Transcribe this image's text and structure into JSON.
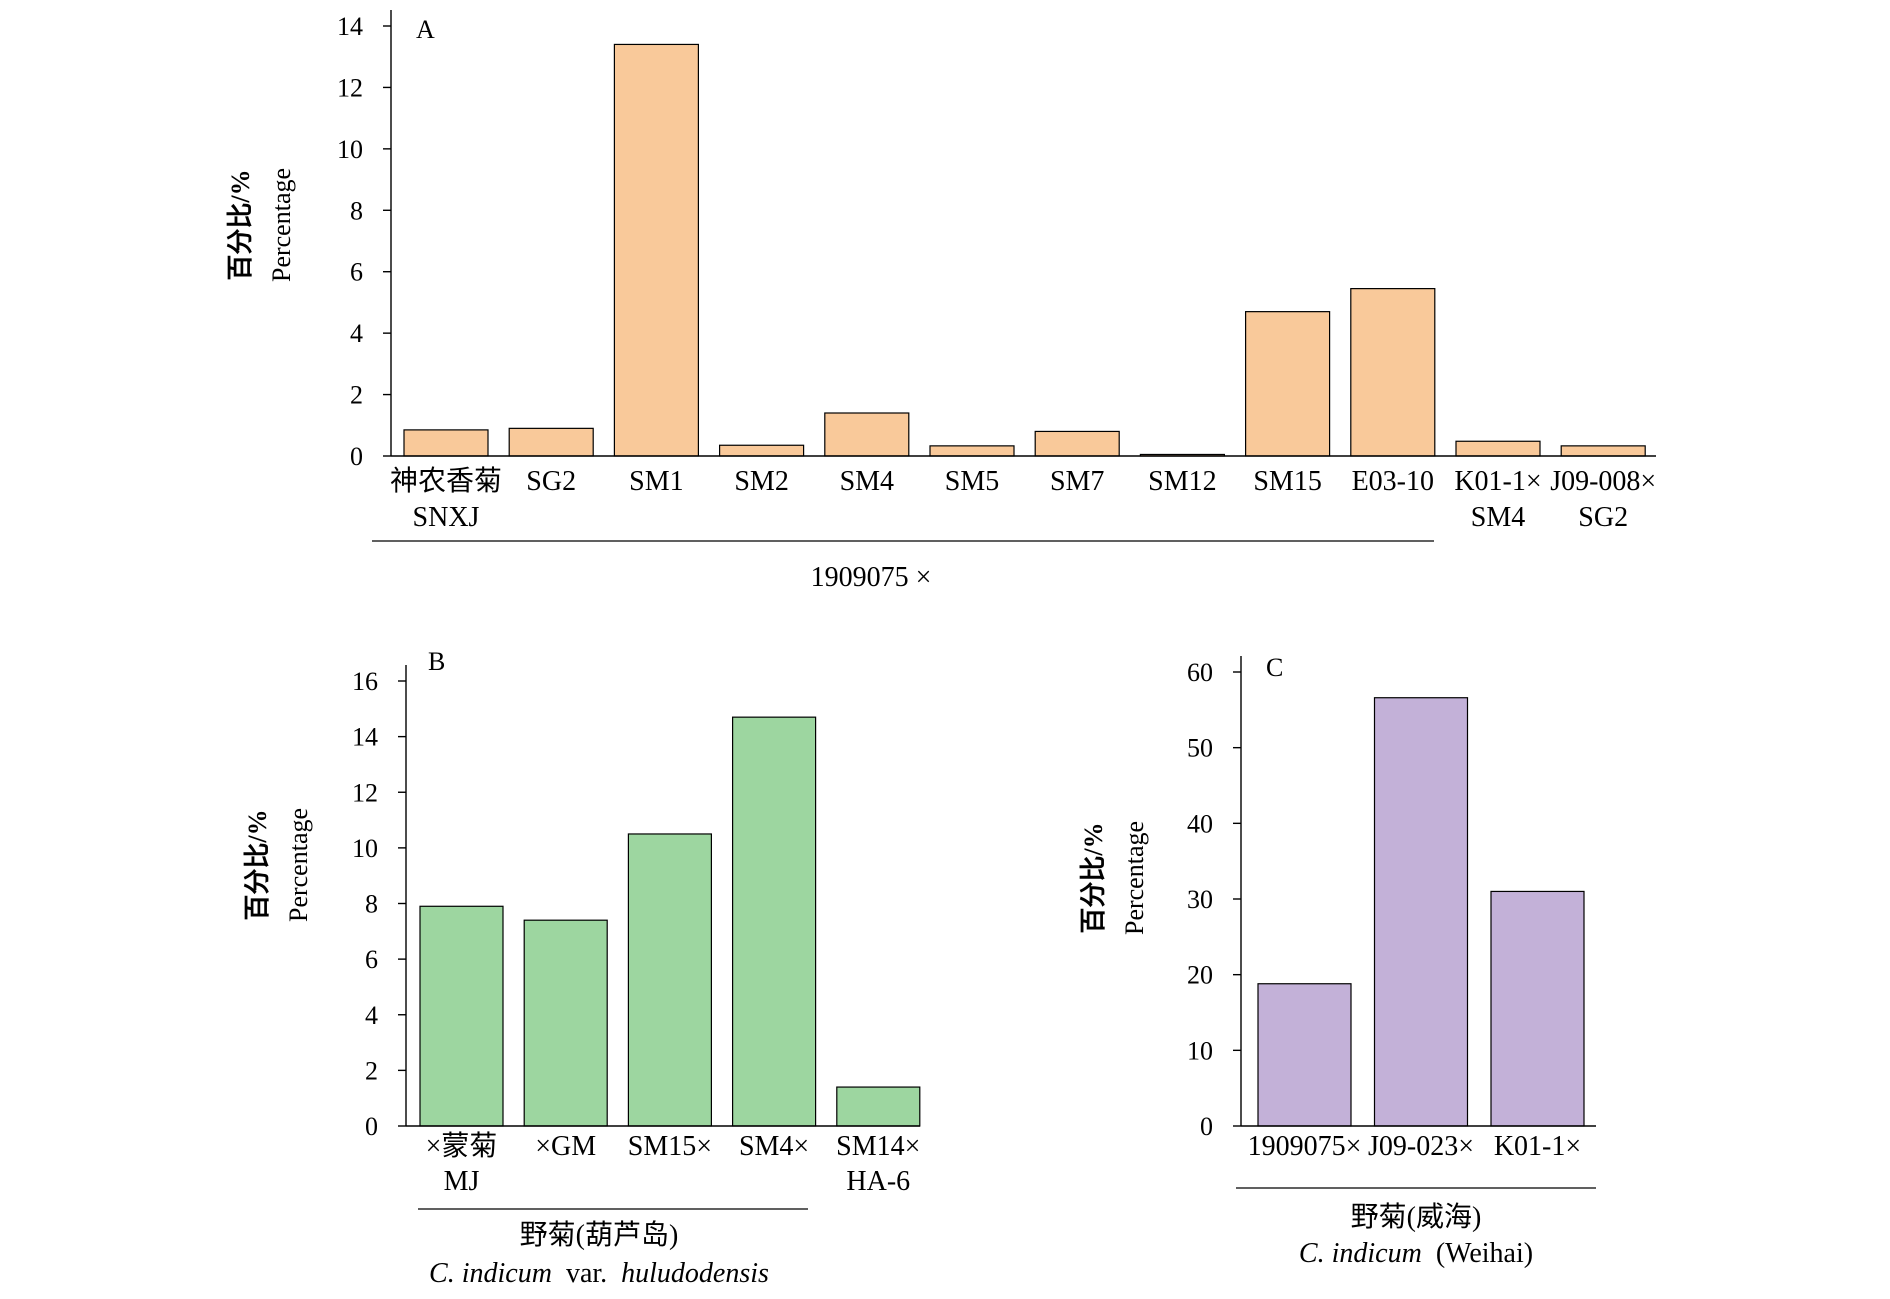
{
  "chart_data": [
    {
      "panel": "A",
      "type": "bar",
      "color": "#F9C99A",
      "ylabel_cn": "百分比/%",
      "ylabel_en": "Percentage",
      "ylim": [
        0,
        14
      ],
      "yticks": [
        0,
        2,
        4,
        6,
        8,
        10,
        12,
        14
      ],
      "categories": [
        {
          "line1": "神农香菊",
          "line2": "SNXJ"
        },
        {
          "line1": "SG2",
          "line2": ""
        },
        {
          "line1": "SM1",
          "line2": ""
        },
        {
          "line1": "SM2",
          "line2": ""
        },
        {
          "line1": "SM4",
          "line2": ""
        },
        {
          "line1": "SM5",
          "line2": ""
        },
        {
          "line1": "SM7",
          "line2": ""
        },
        {
          "line1": "SM12",
          "line2": ""
        },
        {
          "line1": "SM15",
          "line2": ""
        },
        {
          "line1": "E03-10",
          "line2": ""
        },
        {
          "line1": "K01-1×",
          "line2": "SM4"
        },
        {
          "line1": "J09-008×",
          "line2": "SG2"
        }
      ],
      "values": [
        0.85,
        0.9,
        13.4,
        0.35,
        1.4,
        0.33,
        0.8,
        0.05,
        4.7,
        5.45,
        0.48,
        0.33
      ],
      "group_label": "1909075 ×"
    },
    {
      "panel": "B",
      "type": "bar",
      "color": "#9DD6A0",
      "ylabel_cn": "百分比/%",
      "ylabel_en": "Percentage",
      "ylim": [
        0,
        16
      ],
      "yticks": [
        0,
        2,
        4,
        6,
        8,
        10,
        12,
        14,
        16
      ],
      "categories": [
        {
          "line1": "×蒙菊",
          "line2": "MJ"
        },
        {
          "line1": "×GM",
          "line2": ""
        },
        {
          "line1": "SM15×",
          "line2": ""
        },
        {
          "line1": "SM4×",
          "line2": ""
        },
        {
          "line1": "SM14×",
          "line2": "HA-6"
        }
      ],
      "values": [
        7.9,
        7.4,
        10.5,
        14.7,
        1.4
      ],
      "group_label": "野菊(葫芦岛)",
      "group_label_en_italic": "C. indicum",
      "group_label_en_rest": " var. ",
      "group_label_en_italic2": "huludodensis"
    },
    {
      "panel": "C",
      "type": "bar",
      "color": "#C3B1D8",
      "ylabel_cn": "百分比/%",
      "ylabel_en": "Percentage",
      "ylim": [
        0,
        60
      ],
      "yticks": [
        0,
        10,
        20,
        30,
        40,
        50,
        60
      ],
      "categories": [
        {
          "line1": "1909075×",
          "line2": ""
        },
        {
          "line1": "J09-023×",
          "line2": ""
        },
        {
          "line1": "K01-1×",
          "line2": ""
        }
      ],
      "values": [
        18.8,
        56.6,
        31.0
      ],
      "group_label": "野菊(威海)",
      "group_label_en_italic": "C. indicum",
      "group_label_en_rest": " (Weihai)"
    }
  ]
}
